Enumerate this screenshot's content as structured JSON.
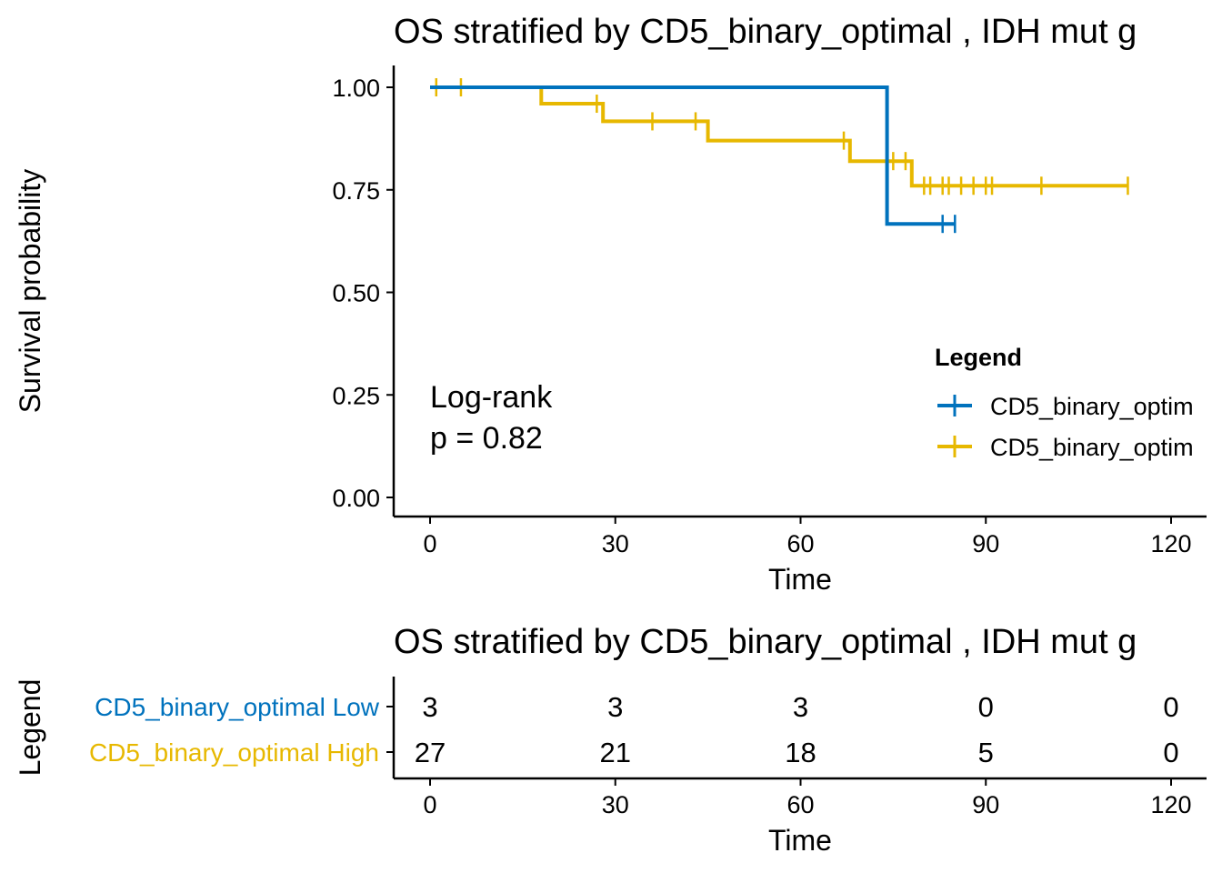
{
  "chart_data": [
    {
      "type": "line",
      "subtype": "kaplan-meier",
      "title": "OS stratified by CD5_binary_optimal , IDH mut g",
      "xlabel": "Time",
      "ylabel": "Survival probability",
      "xlim": [
        -3,
        126
      ],
      "ylim": [
        -0.04,
        1.05
      ],
      "x_ticks": [
        "0",
        "30",
        "60",
        "90",
        "120"
      ],
      "x_tick_values": [
        0,
        30,
        60,
        90,
        120
      ],
      "y_ticks": [
        "0.00",
        "0.25",
        "0.50",
        "0.75",
        "1.00"
      ],
      "y_tick_values": [
        0,
        0.25,
        0.5,
        0.75,
        1.0
      ],
      "legend": {
        "title": "Legend",
        "placement": "right",
        "entries": [
          "CD5_binary_optim",
          "CD5_binary_optim"
        ]
      },
      "annotation": {
        "line1": "Log-rank",
        "line2": "p = 0.82"
      },
      "series": [
        {
          "name": "CD5_binary_optimal Low",
          "color": "#0072BD",
          "steps": [
            [
              0,
              1.0
            ],
            [
              74,
              1.0
            ],
            [
              74,
              0.667
            ],
            [
              85,
              0.667
            ]
          ],
          "censors": [
            [
              83,
              0.667
            ],
            [
              85,
              0.667
            ]
          ]
        },
        {
          "name": "CD5_binary_optimal High",
          "color": "#E7B800",
          "steps": [
            [
              0,
              1.0
            ],
            [
              18,
              1.0
            ],
            [
              18,
              0.96
            ],
            [
              28,
              0.96
            ],
            [
              28,
              0.917
            ],
            [
              45,
              0.917
            ],
            [
              45,
              0.87
            ],
            [
              68,
              0.87
            ],
            [
              68,
              0.82
            ],
            [
              78,
              0.82
            ],
            [
              78,
              0.76
            ],
            [
              113,
              0.76
            ]
          ],
          "censors": [
            [
              1,
              1.0
            ],
            [
              5,
              1.0
            ],
            [
              27,
              0.96
            ],
            [
              36,
              0.917
            ],
            [
              43,
              0.917
            ],
            [
              67,
              0.87
            ],
            [
              74,
              0.82
            ],
            [
              75,
              0.82
            ],
            [
              77,
              0.82
            ],
            [
              80,
              0.76
            ],
            [
              81,
              0.76
            ],
            [
              83,
              0.76
            ],
            [
              84,
              0.76
            ],
            [
              86,
              0.76
            ],
            [
              88,
              0.76
            ],
            [
              90,
              0.76
            ],
            [
              91,
              0.76
            ],
            [
              99,
              0.76
            ],
            [
              113,
              0.76
            ]
          ]
        }
      ]
    },
    {
      "type": "table",
      "title": "OS stratified by CD5_binary_optimal , IDH mut g",
      "xlabel": "Time",
      "ylabel": "Legend",
      "x_ticks": [
        "0",
        "30",
        "60",
        "90",
        "120"
      ],
      "x_tick_values": [
        0,
        30,
        60,
        90,
        120
      ],
      "rows": [
        {
          "label": "CD5_binary_optimal Low",
          "color": "#0072BD",
          "values": [
            "3",
            "3",
            "3",
            "0",
            "0"
          ]
        },
        {
          "label": "CD5_binary_optimal High",
          "color": "#E7B800",
          "values": [
            "27",
            "21",
            "18",
            "5",
            "0"
          ]
        }
      ]
    }
  ]
}
